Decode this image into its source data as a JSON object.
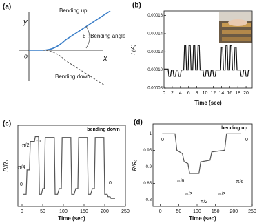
{
  "diagram": {
    "panel": "(a)",
    "y_axis": "y",
    "x_axis": "x",
    "origin": "o",
    "up": "Bending up",
    "down": "Bending down",
    "angle": "θ : Bending angle"
  },
  "chart_data": [
    {
      "type": "line",
      "panel": "(b)",
      "xlabel": "Time (sec)",
      "ylabel": "I (A)",
      "color": "#111111",
      "xlim": [
        0,
        21.5
      ],
      "xticks": [
        0,
        2,
        4,
        6,
        8,
        10,
        12,
        14,
        16,
        18,
        20
      ],
      "ylim": [
        8e-05,
        0.000165
      ],
      "yticks": [
        8e-05,
        {
          "value": 0.0001,
          "label": "0.00010"
        },
        0.00012,
        0.00014,
        0.00016
      ],
      "x": [
        0,
        1.0,
        1.2,
        1.6,
        1.8,
        2.2,
        2.4,
        2.8,
        3.0,
        3.4,
        3.6,
        4.0,
        4.2,
        4.8,
        5.0,
        5.3,
        5.5,
        5.9,
        6.1,
        6.4,
        6.6,
        7.0,
        7.2,
        7.5,
        7.7,
        8.1,
        8.3,
        8.6,
        8.8,
        9.5,
        9.7,
        10.1,
        10.3,
        10.7,
        10.9,
        11.3,
        11.5,
        11.9,
        12.1,
        12.5,
        12.7,
        13.8,
        14.0,
        14.3,
        14.5,
        14.9,
        15.1,
        15.4,
        15.6,
        16.0,
        16.2,
        16.5,
        16.7,
        17.1,
        17.3,
        17.6,
        17.8,
        18.6,
        18.8,
        19.2,
        19.4,
        19.8,
        20.0,
        20.4,
        20.6,
        21.0
      ],
      "values": [
        0.000101,
        0.000101,
        9.3e-05,
        9.3e-05,
        0.0001,
        0.0001,
        9.3e-05,
        9.3e-05,
        0.0001,
        0.0001,
        9.3e-05,
        9.3e-05,
        0.0001,
        0.0001,
        0.000127,
        0.000127,
        0.0001,
        0.0001,
        0.000127,
        0.000127,
        0.0001,
        0.0001,
        0.000127,
        0.000127,
        0.0001,
        0.0001,
        0.000127,
        0.000127,
        0.0001,
        0.0001,
        9.3e-05,
        9.3e-05,
        0.0001,
        0.0001,
        9.3e-05,
        9.3e-05,
        0.0001,
        0.0001,
        9.3e-05,
        9.3e-05,
        0.0001,
        0.0001,
        0.000125,
        0.000125,
        0.0001,
        0.0001,
        0.000127,
        0.000127,
        0.0001,
        0.0001,
        0.000127,
        0.000127,
        0.0001,
        0.0001,
        0.000125,
        0.000125,
        0.0001,
        0.0001,
        9.3e-05,
        9.3e-05,
        0.0001,
        0.0001,
        9.3e-05,
        9.3e-05,
        0.0001,
        0.0001
      ]
    },
    {
      "type": "line",
      "panel": "(c)",
      "title": "bending down",
      "xlabel": "Time (sec)",
      "ylabel": "R/Rₒ",
      "color": "#555555",
      "xlim": [
        -10,
        250
      ],
      "xticks": [
        0,
        50,
        100,
        150,
        200,
        250
      ],
      "ylim": [
        0,
        1
      ],
      "annotations": [
        "0",
        "-π/4",
        "-π/2",
        "-π",
        "0"
      ],
      "x": [
        3,
        10,
        12,
        18,
        20,
        30,
        32,
        40,
        42,
        47,
        50,
        54,
        56,
        78,
        80,
        86,
        90,
        95,
        97,
        118,
        120,
        126,
        130,
        135,
        137,
        158,
        160,
        166,
        170,
        175,
        177,
        198,
        200,
        206,
        208,
        213,
        215,
        225
      ],
      "values": [
        0.15,
        0.15,
        0.45,
        0.45,
        0.8,
        0.8,
        0.86,
        0.86,
        0.15,
        0.15,
        0.22,
        0.22,
        0.85,
        0.85,
        0.15,
        0.15,
        0.22,
        0.22,
        0.85,
        0.85,
        0.15,
        0.15,
        0.22,
        0.22,
        0.85,
        0.85,
        0.15,
        0.15,
        0.22,
        0.22,
        0.85,
        0.85,
        0.15,
        0.15,
        0.12,
        0.12,
        0.1,
        0.1
      ]
    },
    {
      "type": "line",
      "panel": "(d)",
      "title": "bending up",
      "xlabel": "Time (sec)",
      "ylabel": "R/Rₒ",
      "color": "#555555",
      "xlim": [
        -20,
        250
      ],
      "xticks": [
        0,
        50,
        100,
        150,
        200,
        250
      ],
      "ylim": [
        0.78,
        1.03
      ],
      "yticks": [
        0.8,
        0.85,
        0.9,
        0.95,
        1
      ],
      "annotations": [
        "0",
        "π/6",
        "π/3",
        "π/2",
        "π/3",
        "π/6",
        "0"
      ],
      "x": [
        5,
        40,
        45,
        60,
        65,
        75,
        80,
        105,
        110,
        135,
        140,
        175,
        180,
        220
      ],
      "values": [
        1.0,
        1.0,
        0.95,
        0.94,
        0.915,
        0.91,
        0.88,
        0.88,
        0.915,
        0.92,
        0.945,
        0.95,
        1.0,
        1.0
      ]
    }
  ]
}
